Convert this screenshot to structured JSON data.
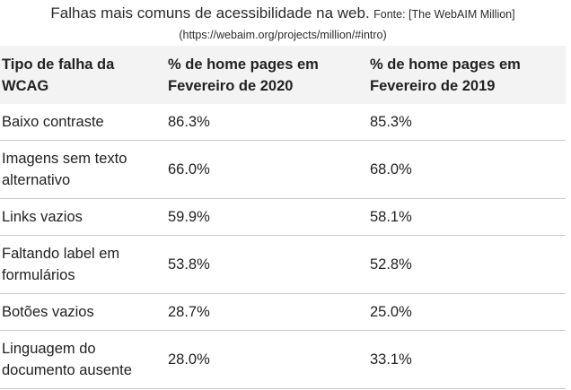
{
  "caption": {
    "title": "Falhas mais comuns de acessibilidade na web.",
    "source": "Fonte: [The WebAIM Million]",
    "url": "(https://webaim.org/projects/million/#intro)"
  },
  "table": {
    "headers": [
      "Tipo de falha da WCAG",
      "% de home pages em Fevereiro de 2020",
      "% de home pages em Fevereiro de 2019"
    ],
    "rows": [
      [
        "Baixo contraste",
        "86.3%",
        "85.3%"
      ],
      [
        "Imagens sem texto alternativo",
        "66.0%",
        "68.0%"
      ],
      [
        "Links vazios",
        "59.9%",
        "58.1%"
      ],
      [
        "Faltando label em formulários",
        "53.8%",
        "52.8%"
      ],
      [
        "Botões vazios",
        "28.7%",
        "25.0%"
      ],
      [
        "Linguagem do documento ausente",
        "28.0%",
        "33.1%"
      ]
    ]
  }
}
